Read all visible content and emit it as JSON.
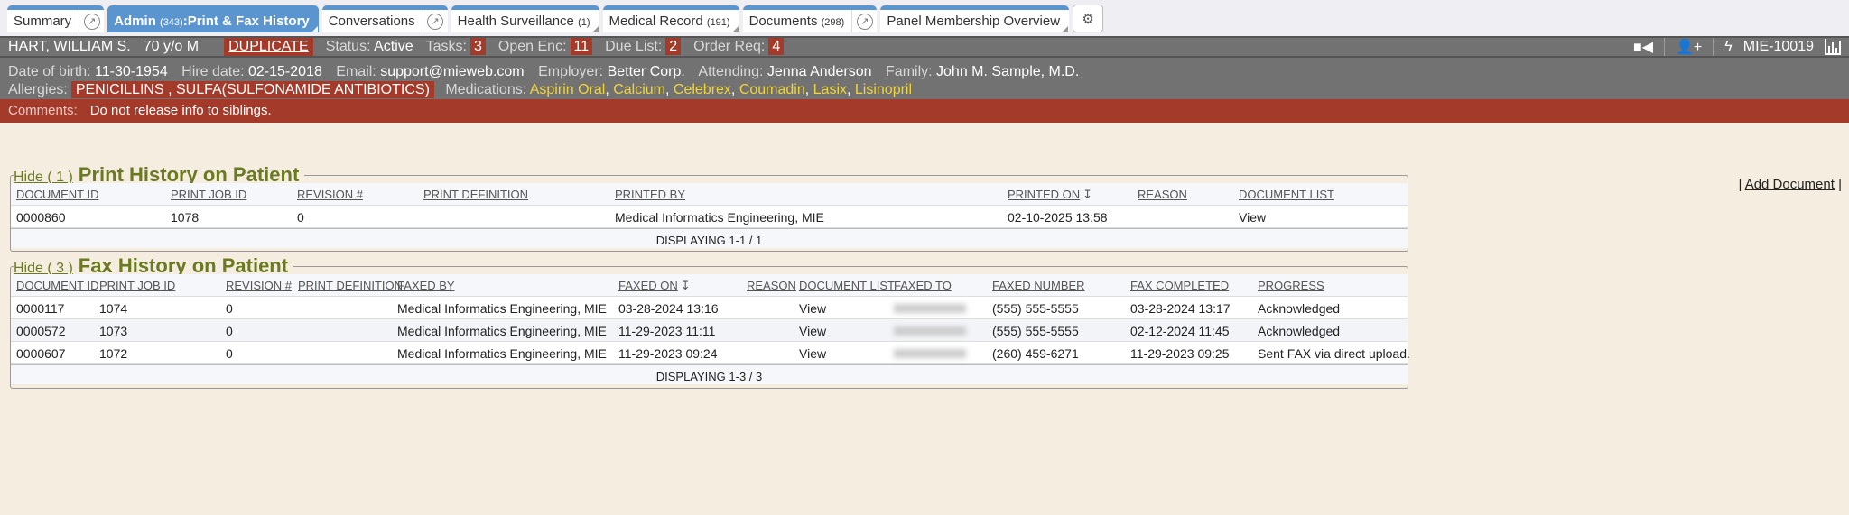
{
  "tabs": [
    {
      "label": "Summary"
    },
    {
      "label": "Admin",
      "count": "(343)",
      "suffix": ":Print & Fax History",
      "active": true
    },
    {
      "label": "Conversations"
    },
    {
      "label": "Health Surveillance",
      "count": "(1)"
    },
    {
      "label": "Medical Record",
      "count": "(191)"
    },
    {
      "label": "Documents",
      "count": "(298)"
    },
    {
      "label": "Panel Membership Overview"
    }
  ],
  "patient": {
    "name": "HART, WILLIAM S.",
    "age": "70 y/o M",
    "duplicate": "DUPLICATE",
    "status_label": "Status:",
    "status": "Active",
    "tasks_label": "Tasks:",
    "tasks": "3",
    "open_enc_label": "Open Enc:",
    "open_enc": "11",
    "due_list_label": "Due List:",
    "due_list": "2",
    "order_req_label": "Order Req:",
    "order_req": "4",
    "mrn": "MIE-10019",
    "dob_label": "Date of birth:",
    "dob": "11-30-1954",
    "hire_label": "Hire date:",
    "hire": "02-15-2018",
    "email_label": "Email:",
    "email": "support@mieweb.com",
    "employer_label": "Employer:",
    "employer": "Better Corp.",
    "attending_label": "Attending:",
    "attending": "Jenna Anderson",
    "family_label": "Family:",
    "family": "John M. Sample, M.D.",
    "allergies_label": "Allergies:",
    "allergies": "PENICILLINS , SULFA(SULFONAMIDE ANTIBIOTICS)",
    "medications_label": "Medications:",
    "medications": [
      "Aspirin Oral",
      "Calcium",
      "Celebrex",
      "Coumadin",
      "Lasix",
      "Lisinopril"
    ],
    "comments_label": "Comments:",
    "comments": "Do not release info to siblings."
  },
  "add_document": "Add Document",
  "print_history": {
    "hide": "Hide ( 1 )",
    "title": "Print History on Patient",
    "columns": [
      "DOCUMENT ID",
      "PRINT JOB ID",
      "REVISION #",
      "PRINT DEFINITION",
      "PRINTED BY",
      "PRINTED ON",
      "REASON",
      "DOCUMENT LIST"
    ],
    "rows": [
      [
        "0000860",
        "1078",
        "0",
        "",
        "Medical Informatics Engineering, MIE",
        "02-10-2025 13:58",
        "",
        "View"
      ]
    ],
    "footer": "DISPLAYING 1-1 / 1"
  },
  "fax_history": {
    "hide": "Hide ( 3 )",
    "title": "Fax History on Patient",
    "columns": [
      "DOCUMENT ID",
      "PRINT JOB ID",
      "REVISION #",
      "PRINT DEFINITION",
      "FAXED BY",
      "FAXED ON",
      "REASON",
      "DOCUMENT LIST",
      "FAXED TO",
      "FAXED NUMBER",
      "FAX COMPLETED",
      "PROGRESS"
    ],
    "rows": [
      [
        "0000117",
        "1074",
        "0",
        "",
        "Medical Informatics Engineering, MIE",
        "03-28-2024 13:16",
        "",
        "View",
        "",
        "(555) 555-5555",
        "03-28-2024 13:17",
        "Acknowledged"
      ],
      [
        "0000572",
        "1073",
        "0",
        "",
        "Medical Informatics Engineering, MIE",
        "11-29-2023 11:11",
        "",
        "View",
        "",
        "(555) 555-5555",
        "02-12-2024 11:45",
        "Acknowledged"
      ],
      [
        "0000607",
        "1072",
        "0",
        "",
        "Medical Informatics Engineering, MIE",
        "11-29-2023 09:24",
        "",
        "View",
        "",
        "(260) 459-6271",
        "11-29-2023 09:25",
        "Sent FAX via direct upload."
      ]
    ],
    "footer": "DISPLAYING 1-3 / 3"
  }
}
